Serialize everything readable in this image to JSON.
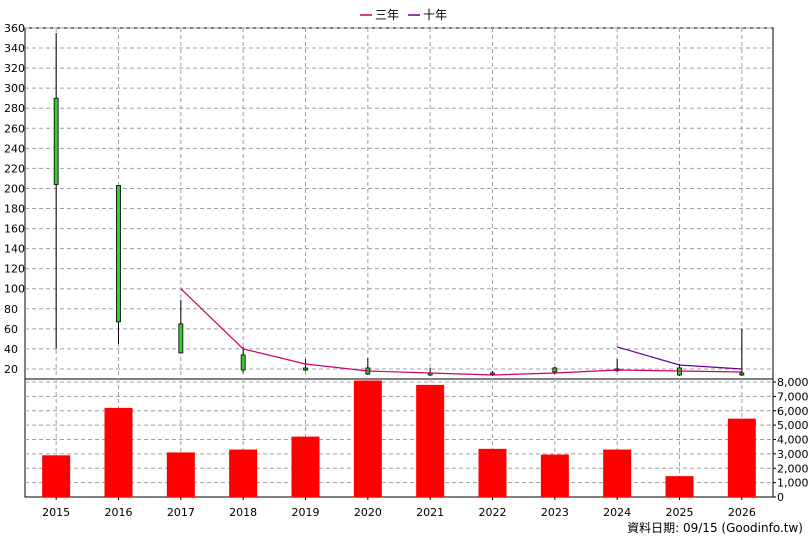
{
  "legend": [
    {
      "name": "三年",
      "color": "#cc0066"
    },
    {
      "name": "十年",
      "color": "#660099"
    }
  ],
  "footer": {
    "text": "資料日期: 09/15  (Goodinfo.tw)"
  },
  "chart_data": [
    {
      "type": "candlestick",
      "title": "",
      "xlabel": "",
      "ylabel": "",
      "categories": [
        "2015",
        "2016",
        "2017",
        "2018",
        "2019",
        "2020",
        "2021",
        "2022",
        "2023",
        "2024",
        "2025",
        "2026"
      ],
      "ylim": [
        10,
        360
      ],
      "yticks": [
        20,
        40,
        60,
        80,
        100,
        120,
        140,
        160,
        180,
        200,
        220,
        240,
        260,
        280,
        300,
        320,
        340,
        360
      ],
      "grid": true,
      "up_color": "#33cc33",
      "down_color": "#ff0000",
      "candles": [
        {
          "open": 204,
          "close": 290,
          "high": 355,
          "low": 40
        },
        {
          "open": 67,
          "close": 203,
          "high": 203,
          "low": 45
        },
        {
          "open": 36,
          "close": 65,
          "high": 89,
          "low": 36
        },
        {
          "open": 19,
          "close": 34,
          "high": 42,
          "low": 16
        },
        {
          "open": 19,
          "close": 21,
          "high": 30,
          "low": 18
        },
        {
          "open": 15,
          "close": 21,
          "high": 31,
          "low": 14
        },
        {
          "open": 14,
          "close": 16,
          "high": 21,
          "low": 13
        },
        {
          "open": 15,
          "close": 16,
          "high": 18,
          "low": 13
        },
        {
          "open": 17,
          "close": 21,
          "high": 22,
          "low": 15
        },
        {
          "open": 19,
          "close": 20,
          "high": 30,
          "low": 17
        },
        {
          "open": 14,
          "close": 21,
          "high": 25,
          "low": 13
        },
        {
          "open": 14,
          "close": 16,
          "high": 60,
          "low": 13
        }
      ],
      "series": [
        {
          "name": "三年",
          "color": "#cc0066",
          "values": [
            null,
            null,
            100,
            40,
            25,
            18,
            16,
            14,
            16,
            19,
            18,
            17
          ]
        },
        {
          "name": "十年",
          "color": "#660099",
          "values": [
            null,
            null,
            null,
            null,
            null,
            null,
            null,
            null,
            null,
            42,
            24,
            20
          ]
        }
      ]
    },
    {
      "type": "bar",
      "title": "",
      "xlabel": "",
      "ylabel": "",
      "categories": [
        "2015",
        "2016",
        "2017",
        "2018",
        "2019",
        "2020",
        "2021",
        "2022",
        "2023",
        "2024",
        "2025",
        "2026"
      ],
      "values": [
        2900,
        6200,
        3100,
        3300,
        4200,
        8100,
        7800,
        3350,
        2950,
        3300,
        1450,
        5450
      ],
      "ylim": [
        0,
        8000
      ],
      "yticks": [
        {
          "value": 0,
          "label": "0"
        },
        {
          "value": 1000,
          "label": "1,000"
        },
        {
          "value": 2000,
          "label": "2,000"
        },
        {
          "value": 3000,
          "label": "3,000"
        },
        {
          "value": 4000,
          "label": "4,000"
        },
        {
          "value": 5000,
          "label": "5,000"
        },
        {
          "value": 6000,
          "label": "6,000"
        },
        {
          "value": 7000,
          "label": "7,000"
        },
        {
          "value": 8000,
          "label": "8,000"
        }
      ],
      "color": "#ff0000",
      "grid": true
    }
  ]
}
